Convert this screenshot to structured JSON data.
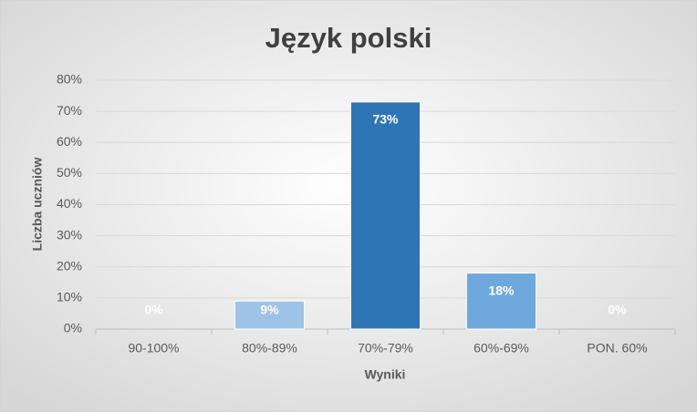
{
  "chart_data": {
    "type": "bar",
    "title": "Język polski",
    "xlabel": "Wyniki",
    "ylabel": "Liczba uczniów",
    "categories": [
      "90-100%",
      "80%-89%",
      "70%-79%",
      "60%-69%",
      "PON. 60%"
    ],
    "values": [
      0,
      9,
      73,
      18,
      0
    ],
    "value_labels": [
      "0%",
      "9%",
      "73%",
      "18%",
      "0%"
    ],
    "colors": [
      "#9dc3e6",
      "#9dc3e6",
      "#2e75b6",
      "#6fa8dc",
      "#9dc3e6"
    ],
    "ylim": [
      0,
      80
    ],
    "yticks": [
      {
        "value": 0,
        "label": "0%"
      },
      {
        "value": 10,
        "label": "10%"
      },
      {
        "value": 20,
        "label": "20%"
      },
      {
        "value": 30,
        "label": "30%"
      },
      {
        "value": 40,
        "label": "40%"
      },
      {
        "value": 50,
        "label": "50%"
      },
      {
        "value": 60,
        "label": "60%"
      },
      {
        "value": 70,
        "label": "70%"
      },
      {
        "value": 80,
        "label": "80%"
      }
    ],
    "grid": true
  }
}
